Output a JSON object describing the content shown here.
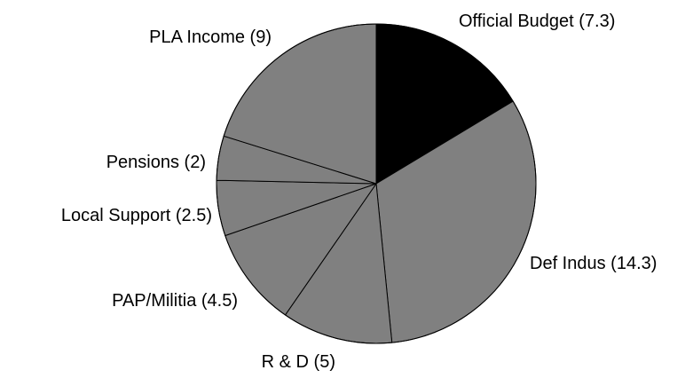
{
  "chart_data": {
    "type": "pie",
    "start_angle_deg": 0,
    "direction": "clockwise",
    "slices": [
      {
        "label": "Official Budget (7.3)",
        "value": 7.3,
        "color": "#000000"
      },
      {
        "label": "Def Indus (14.3)",
        "value": 14.3,
        "color": "#808080"
      },
      {
        "label": "R & D (5)",
        "value": 5,
        "color": "#808080"
      },
      {
        "label": "PAP/Militia (4.5)",
        "value": 4.5,
        "color": "#808080"
      },
      {
        "label": "Local Support (2.5)",
        "value": 2.5,
        "color": "#808080"
      },
      {
        "label": "Pensions (2)",
        "value": 2,
        "color": "#808080"
      },
      {
        "label": "PLA Income (9)",
        "value": 9,
        "color": "#808080"
      }
    ],
    "legend": "none"
  }
}
